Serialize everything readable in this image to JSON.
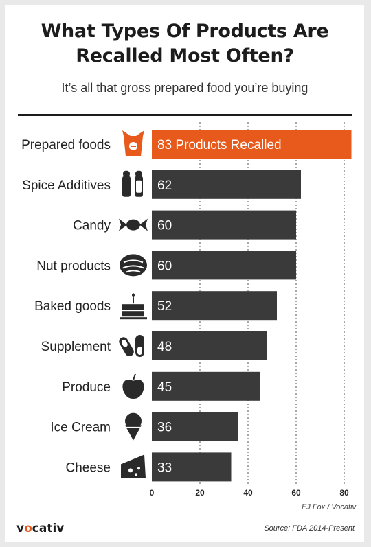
{
  "header": {
    "title_line1": "What Types Of Products Are",
    "title_line2": "Recalled Most Often?",
    "subtitle": "It’s all that gross prepared food you’re buying"
  },
  "chart_data": {
    "type": "bar",
    "orientation": "horizontal",
    "title": "What Types Of Products Are Recalled Most Often?",
    "subtitle": "It’s all that gross prepared food you’re buying",
    "categories": [
      "Prepared foods",
      "Spice Additives",
      "Candy",
      "Nut products",
      "Baked goods",
      "Supplement",
      "Produce",
      "Ice Cream",
      "Cheese"
    ],
    "values": [
      83,
      62,
      60,
      60,
      52,
      48,
      45,
      36,
      33
    ],
    "value_labels": [
      "83 Products Recalled",
      "62",
      "60",
      "60",
      "52",
      "48",
      "45",
      "36",
      "33"
    ],
    "icons": [
      "takeout-box-icon",
      "salt-pepper-shakers-icon",
      "wrapped-candy-icon",
      "walnut-icon",
      "cake-icon",
      "pill-capsules-icon",
      "apple-icon",
      "ice-cream-cone-icon",
      "cheese-wedge-icon"
    ],
    "xlim": [
      0,
      83
    ],
    "xticks": [
      0,
      20,
      40,
      60,
      80
    ],
    "xlabel": "",
    "ylabel": "",
    "grid": "dashed vertical at 20, 40, 60, 80",
    "colors": {
      "highlight": "#e85a1c",
      "bar": "#3a3a3a"
    }
  },
  "footer": {
    "credit": "EJ Fox / Vocativ",
    "logo_prefix": "v",
    "logo_mark": "o",
    "logo_suffix": "cativ",
    "source": "Source: FDA 2014-Present"
  }
}
